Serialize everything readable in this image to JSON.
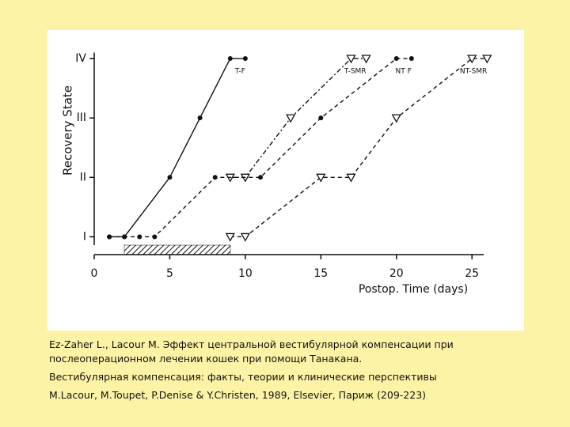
{
  "chart_data": {
    "type": "line",
    "ylabel": "Recovery State",
    "xlabel": "Postop. Time (days)",
    "xlim": [
      0,
      26.3
    ],
    "xticks": [
      0,
      5,
      10,
      15,
      20,
      25
    ],
    "ylim": [
      0.7,
      4.1
    ],
    "yticks": [
      {
        "value": 1,
        "label": "I"
      },
      {
        "value": 2,
        "label": "II"
      },
      {
        "value": 3,
        "label": "III"
      },
      {
        "value": 4,
        "label": "IV"
      }
    ],
    "series": [
      {
        "name": "T-F",
        "color": "#111111",
        "marker": "circle",
        "dash": "none",
        "x": [
          1,
          2,
          5,
          7,
          9,
          10
        ],
        "values": [
          1,
          1,
          2,
          3,
          4,
          4
        ]
      },
      {
        "name": "T-SMR",
        "color": "#111111",
        "marker": "triangle",
        "dash": "6 3 2 3",
        "x": [
          9,
          10,
          13,
          17,
          18
        ],
        "values": [
          2,
          2,
          3,
          4,
          4
        ]
      },
      {
        "name": "NT F",
        "color": "#111111",
        "marker": "circle",
        "dash": "5 4",
        "x": [
          1,
          2,
          3,
          4,
          8,
          11,
          15,
          20,
          21
        ],
        "values": [
          1,
          1,
          1,
          1,
          2,
          2,
          3,
          4,
          4
        ]
      },
      {
        "name": "NT-SMR",
        "color": "#111111",
        "marker": "triangle",
        "dash": "5 4",
        "x": [
          9,
          10,
          15,
          17,
          20,
          25,
          26
        ],
        "values": [
          1,
          1,
          2,
          2,
          3,
          4,
          4
        ]
      }
    ]
  },
  "caption": [
    "Ez-Zaher L., Lacour M. Эффект центральной вестибулярной компенсации при",
    "послеоперационном лечении кошек при помощи Танакана.",
    "Вестибулярная компенсация: факты, теории и клинические перспективы",
    "M.Lacour, M.Toupet, P.Denise  & Y.Christen, 1989, Elsevier, Париж  (209-223)"
  ]
}
